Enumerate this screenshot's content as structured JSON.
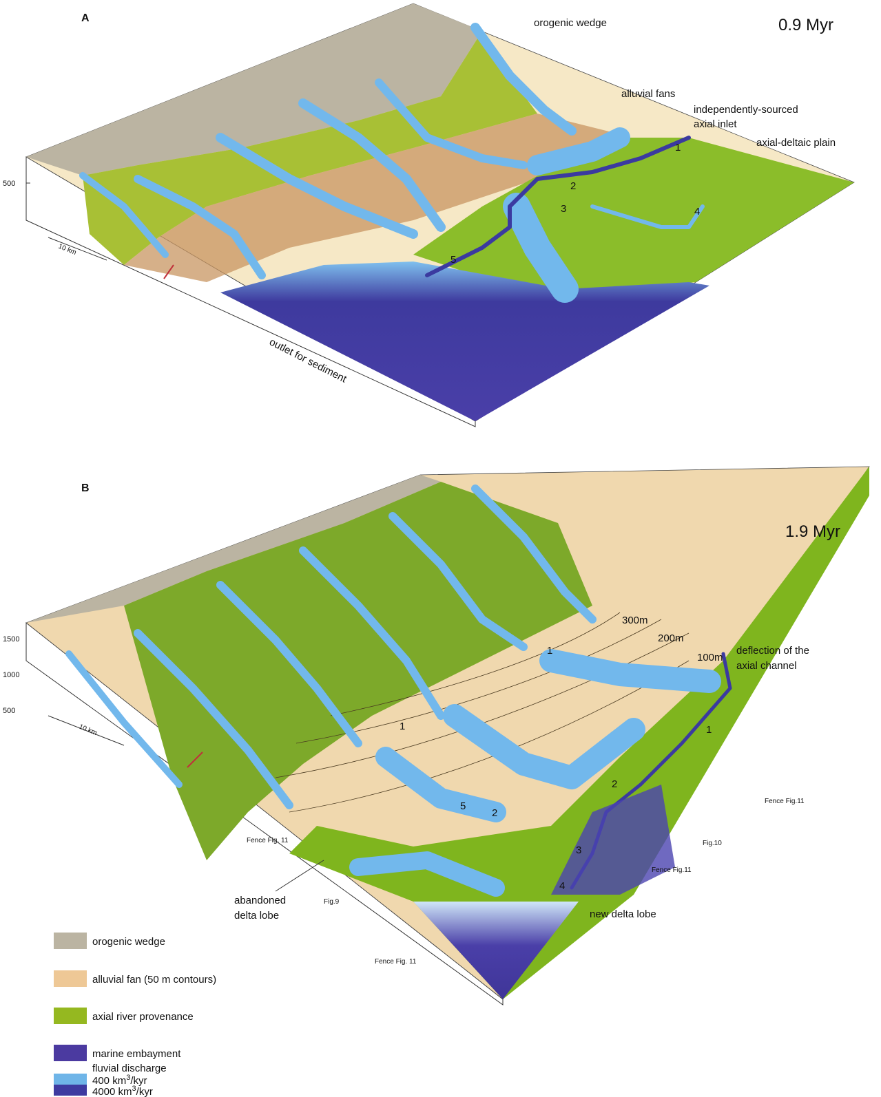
{
  "panel_a": {
    "label": "A",
    "time": "0.9 Myr",
    "wedge": "orogenic wedge",
    "fans": "alluvial fans",
    "inlet": [
      "independently-sourced",
      "axial inlet"
    ],
    "plain": "axial-deltaic plain",
    "numbers": [
      "1",
      "2",
      "3",
      "4",
      "5"
    ],
    "tick": "500",
    "scale": "10 km",
    "outlet": "outlet for sediment"
  },
  "panel_b": {
    "label": "B",
    "time": "1.9 Myr",
    "ticks": [
      "1500",
      "1000",
      "500"
    ],
    "scale": "10 km",
    "contours": [
      "300m",
      "200m",
      "100m"
    ],
    "deflection": [
      "deflection of the",
      "axial channel"
    ],
    "numbers": [
      "1",
      "1",
      "1",
      "2",
      "2",
      "3",
      "4",
      "5"
    ],
    "fences": [
      "Fence Fig.11",
      "Fig.10",
      "Fence Fig.11",
      "Fence Fig. 11",
      "Fig.9",
      "Fence Fig. 11"
    ],
    "abandoned": [
      "abandoned",
      "delta lobe"
    ],
    "new_lobe": "new delta lobe"
  },
  "legend": {
    "items": [
      "orogenic wedge",
      "alluvial fan (50 m contours)",
      "axial river  provenance",
      "marine embayment"
    ],
    "discharge_title": "fluvial discharge",
    "discharge": [
      {
        "value": "400 km",
        "sup": "3",
        "unit": "/kyr"
      },
      {
        "value": "4000 km",
        "sup": "3",
        "unit": "/kyr"
      }
    ]
  }
}
